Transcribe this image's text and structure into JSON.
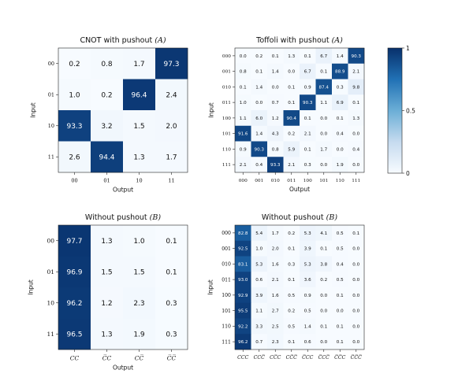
{
  "colorbar": {
    "min": 0,
    "max": 1,
    "ticks": [
      "0",
      "0.5",
      "1"
    ]
  },
  "colors": {
    "low": "#f7fbff",
    "high": "#08306b"
  },
  "chart_data": [
    {
      "type": "heatmap",
      "title": "CNOT with pushout (A)",
      "title_main": "CNOT with pushout ",
      "title_tag": "(A)",
      "xlabel": "Output",
      "ylabel": "Input",
      "rows": [
        "00",
        "01",
        "10",
        "11"
      ],
      "cols": [
        "00",
        "01",
        "10",
        "11"
      ],
      "values": [
        [
          "0.2",
          "0.8",
          "1.7",
          "97.3"
        ],
        [
          "1.0",
          "0.2",
          "96.4",
          "2.4"
        ],
        [
          "93.3",
          "3.2",
          "1.5",
          "2.0"
        ],
        [
          "2.6",
          "94.4",
          "1.3",
          "1.7"
        ]
      ]
    },
    {
      "type": "heatmap",
      "title": "Toffoli with pushout (A)",
      "title_main": "Toffoli with pushout ",
      "title_tag": "(A)",
      "xlabel": "Output",
      "ylabel": "Input",
      "rows": [
        "000",
        "001",
        "010",
        "011",
        "100",
        "101",
        "110",
        "111"
      ],
      "cols": [
        "000",
        "001",
        "010",
        "011",
        "100",
        "101",
        "110",
        "111"
      ],
      "values": [
        [
          "0.0",
          "0.2",
          "0.1",
          "1.3",
          "0.1",
          "6.7",
          "1.4",
          "90.3"
        ],
        [
          "0.8",
          "0.1",
          "1.4",
          "0.0",
          "6.7",
          "0.1",
          "88.9",
          "2.1"
        ],
        [
          "0.1",
          "1.4",
          "0.0",
          "0.1",
          "0.9",
          "87.4",
          "0.3",
          "9.8"
        ],
        [
          "1.0",
          "0.0",
          "0.7",
          "0.1",
          "90.3",
          "1.1",
          "6.9",
          "0.1"
        ],
        [
          "1.1",
          "6.0",
          "1.2",
          "90.4",
          "0.1",
          "0.0",
          "0.1",
          "1.3"
        ],
        [
          "91.6",
          "1.4",
          "4.3",
          "0.2",
          "2.1",
          "0.0",
          "0.4",
          "0.0"
        ],
        [
          "0.9",
          "90.3",
          "0.8",
          "5.9",
          "0.1",
          "1.7",
          "0.0",
          "0.4"
        ],
        [
          "2.1",
          "0.4",
          "93.3",
          "2.1",
          "0.3",
          "0.0",
          "1.9",
          "0.0"
        ]
      ]
    },
    {
      "type": "heatmap",
      "title": "Without pushout (B)",
      "title_main": "Without pushout ",
      "title_tag": "(B)",
      "xlabel": "Output",
      "ylabel": "Input",
      "rows": [
        "00",
        "01",
        "10",
        "11"
      ],
      "cols": [
        "CC",
        "C̅C",
        "CC̅",
        "C̅C̅"
      ],
      "values": [
        [
          "97.7",
          "1.3",
          "1.0",
          "0.1"
        ],
        [
          "96.9",
          "1.5",
          "1.5",
          "0.1"
        ],
        [
          "96.2",
          "1.2",
          "2.3",
          "0.3"
        ],
        [
          "96.5",
          "1.3",
          "1.9",
          "0.3"
        ]
      ]
    },
    {
      "type": "heatmap",
      "title": "Without pushout (B)",
      "title_main": "Without pushout ",
      "title_tag": "(B)",
      "xlabel": "",
      "ylabel": "Input",
      "rows": [
        "000",
        "001",
        "010",
        "011",
        "100",
        "101",
        "110",
        "111"
      ],
      "cols": [
        "CCC",
        "CCC̅",
        "CC̅C",
        "CC̅C̅",
        "C̅CC",
        "C̅CC̅",
        "C̅C̅C",
        "C̅C̅C̅"
      ],
      "values": [
        [
          "82.8",
          "5.4",
          "1.7",
          "0.2",
          "5.3",
          "4.1",
          "0.5",
          "0.1"
        ],
        [
          "92.5",
          "1.0",
          "2.0",
          "0.1",
          "3.9",
          "0.1",
          "0.5",
          "0.0"
        ],
        [
          "83.1",
          "5.3",
          "1.6",
          "0.3",
          "5.3",
          "3.8",
          "0.4",
          "0.0"
        ],
        [
          "93.0",
          "0.6",
          "2.1",
          "0.1",
          "3.6",
          "0.2",
          "0.5",
          "0.0"
        ],
        [
          "92.9",
          "3.9",
          "1.6",
          "0.5",
          "0.9",
          "0.0",
          "0.1",
          "0.0"
        ],
        [
          "95.5",
          "1.1",
          "2.7",
          "0.2",
          "0.5",
          "0.0",
          "0.0",
          "0.0"
        ],
        [
          "92.2",
          "3.3",
          "2.5",
          "0.5",
          "1.4",
          "0.1",
          "0.1",
          "0.0"
        ],
        [
          "96.2",
          "0.7",
          "2.3",
          "0.1",
          "0.6",
          "0.0",
          "0.1",
          "0.0"
        ]
      ]
    }
  ]
}
